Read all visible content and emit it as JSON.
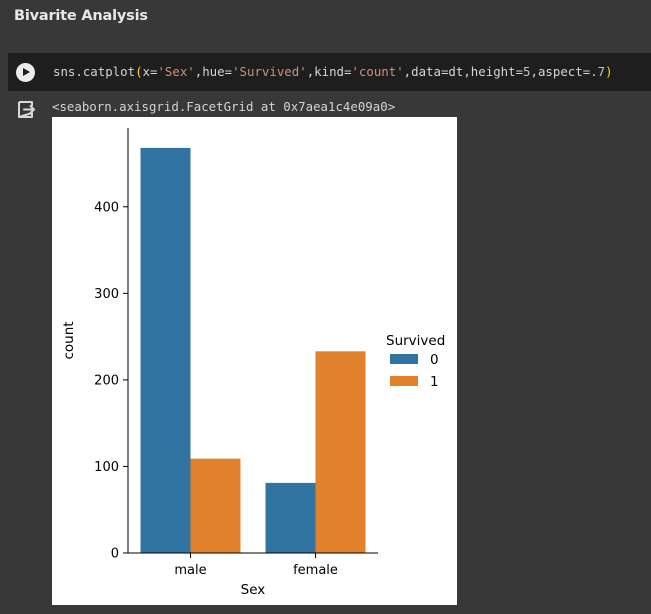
{
  "section": {
    "title": "Bivarite Analysis"
  },
  "code_cell": {
    "parts": [
      {
        "text": "sns.catplot",
        "kind": "plain"
      },
      {
        "text": "(",
        "kind": "paren"
      },
      {
        "text": "x=",
        "kind": "plain"
      },
      {
        "text": "'Sex'",
        "kind": "str"
      },
      {
        "text": ",hue=",
        "kind": "plain"
      },
      {
        "text": "'Survived'",
        "kind": "str"
      },
      {
        "text": ",kind=",
        "kind": "plain"
      },
      {
        "text": "'count'",
        "kind": "str"
      },
      {
        "text": ",data=dt,height=",
        "kind": "plain"
      },
      {
        "text": "5",
        "kind": "num"
      },
      {
        "text": ",aspect=",
        "kind": "plain"
      },
      {
        "text": ".7",
        "kind": "num"
      },
      {
        "text": ")",
        "kind": "paren"
      }
    ]
  },
  "output": {
    "text": "<seaborn.axisgrid.FacetGrid at 0x7aea1c4e09a0>"
  },
  "chart_data": {
    "type": "bar",
    "categories": [
      "male",
      "female"
    ],
    "series": [
      {
        "name": "0",
        "values": [
          468,
          81
        ],
        "color": "#3274a1"
      },
      {
        "name": "1",
        "values": [
          109,
          233
        ],
        "color": "#e1812c"
      }
    ],
    "xlabel": "Sex",
    "ylabel": "count",
    "ylim": [
      0,
      491
    ],
    "yticks": [
      0,
      100,
      200,
      300,
      400
    ],
    "legend_title": "Survived",
    "legend_position": "right",
    "grid": false
  }
}
